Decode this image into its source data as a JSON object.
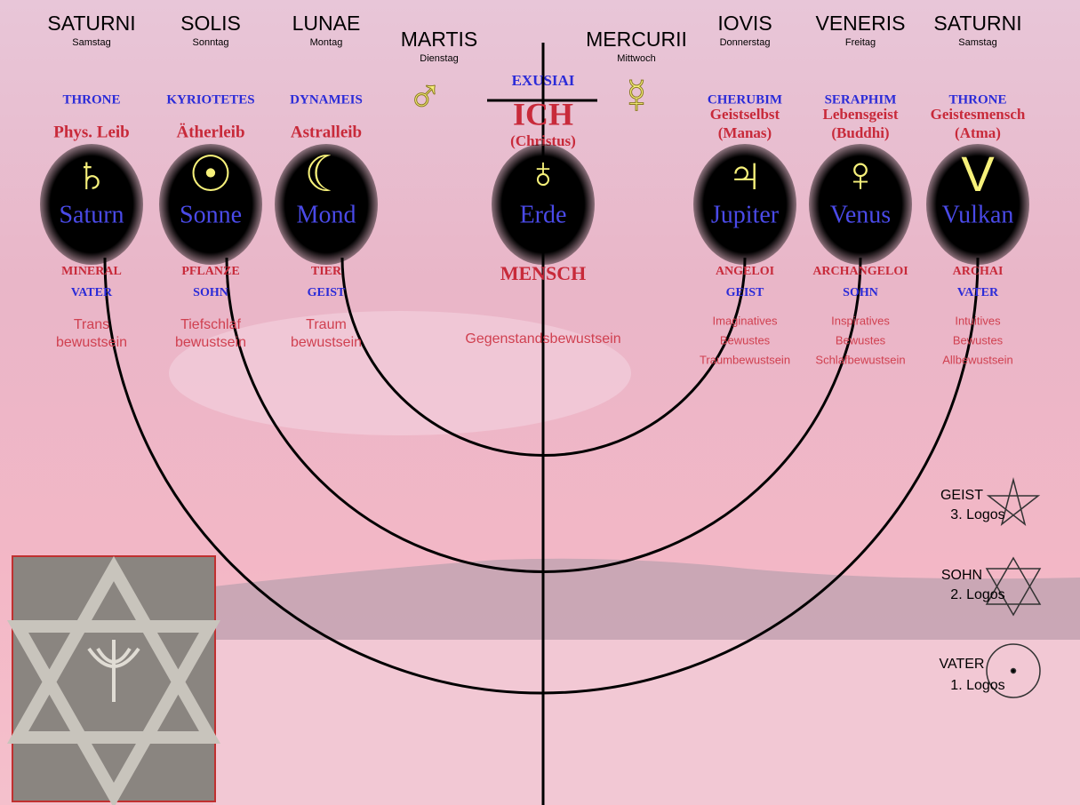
{
  "columns": [
    {
      "day": "SATURNI",
      "weekday": "Samstag",
      "hierarchy": "THRONE",
      "body": [
        "Phys. Leib"
      ],
      "symbol": "♄",
      "planet": "Saturn",
      "kingdom": "MINERAL",
      "person": "VATER",
      "consciousness": [
        "Trans",
        "bewustsein"
      ]
    },
    {
      "day": "SOLIS",
      "weekday": "Sonntag",
      "hierarchy": "KYRIOTETES",
      "body": [
        "Ätherleib"
      ],
      "symbol": "☉",
      "planet": "Sonne",
      "kingdom": "PFLANZE",
      "person": "SOHN",
      "consciousness": [
        "Tiefschlaf",
        "bewustsein"
      ]
    },
    {
      "day": "LUNAE",
      "weekday": "Montag",
      "hierarchy": "DYNAMEIS",
      "body": [
        "Astralleib"
      ],
      "symbol": "☾",
      "planet": "Mond",
      "kingdom": "TIER",
      "person": "GEIST",
      "consciousness": [
        "Traum",
        "bewustsein"
      ]
    },
    {
      "day": "IOVIS",
      "weekday": "Donnerstag",
      "hierarchy": "CHERUBIM",
      "body": [
        "Geistselbst",
        "(Manas)"
      ],
      "symbol": "♃",
      "planet": "Jupiter",
      "kingdom": "ANGELOI",
      "person": "GEIST",
      "consciousness": [
        "Imaginatives",
        "Bewustes",
        "Traumbewustsein"
      ]
    },
    {
      "day": "VENERIS",
      "weekday": "Freitag",
      "hierarchy": "SERAPHIM",
      "body": [
        "Lebensgeist",
        "(Buddhi)"
      ],
      "symbol": "♀",
      "planet": "Venus",
      "kingdom": "ARCHANGELOI",
      "person": "SOHN",
      "consciousness": [
        "Inspiratives",
        "Bewustes",
        "Schlafbewustsein"
      ]
    },
    {
      "day": "SATURNI",
      "weekday": "Samstag",
      "hierarchy": "THRONE",
      "body": [
        "Geistesmensch",
        "(Atma)"
      ],
      "symbol": "V",
      "planet": "Vulkan",
      "kingdom": "ARCHAI",
      "person": "VATER",
      "consciousness": [
        "Intuitives",
        "Bewustes",
        "Allbewustsein"
      ]
    }
  ],
  "center": {
    "hierarchy": "EXUSIAI",
    "body": [
      "ICH",
      "(Christus)"
    ],
    "symbol": "♁",
    "planet": "Erde",
    "kingdom": "MENSCH",
    "consciousness": [
      "Gegenstandsbewustsein"
    ]
  },
  "sides": [
    {
      "day": "MARTIS",
      "weekday": "Dienstag",
      "symbol": "♂"
    },
    {
      "day": "MERCURII",
      "weekday": "Mittwoch",
      "symbol": "☿"
    }
  ],
  "legend": [
    {
      "label": "GEIST",
      "sub": "3. Logos"
    },
    {
      "label": "SOHN",
      "sub": "2. Logos"
    },
    {
      "label": "VATER",
      "sub": "1. Logos"
    }
  ]
}
